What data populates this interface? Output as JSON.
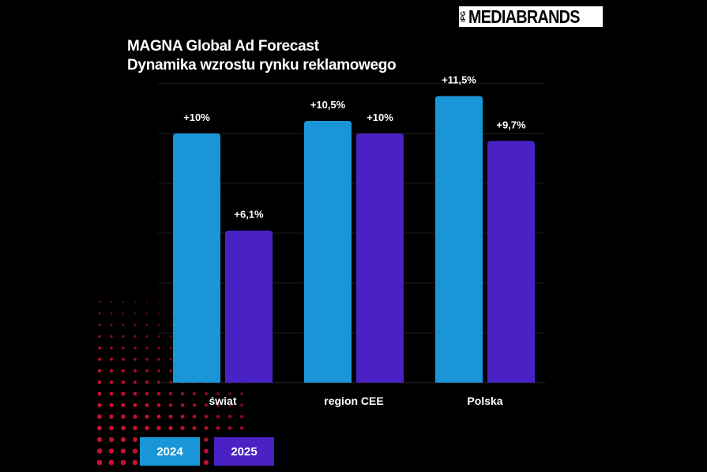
{
  "brand": {
    "logo_prefix": "IPG",
    "logo_text": "MEDIABRANDS"
  },
  "header": {
    "title_line1": "MAGNA Global Ad Forecast",
    "title_line2": "Dynamika wzrostu rynku reklamowego"
  },
  "colors": {
    "series_2024": "#1a96d8",
    "series_2025": "#4a22c4",
    "background": "#000000",
    "text": "#ffffff",
    "dots": "#c8102e"
  },
  "chart_data": {
    "type": "bar",
    "title": "MAGNA Global Ad Forecast — Dynamika wzrostu rynku reklamowego",
    "categories": [
      "świat",
      "region CEE",
      "Polska"
    ],
    "series": [
      {
        "name": "2024",
        "values": [
          10,
          10.5,
          11.5
        ],
        "labels": [
          "+10%",
          "+10,5%",
          "+11,5%"
        ]
      },
      {
        "name": "2025",
        "values": [
          6.1,
          10,
          9.7
        ],
        "labels": [
          "+6,1%",
          "+10%",
          "+9,7%"
        ]
      }
    ],
    "ylim": [
      0,
      12.5
    ],
    "xlabel": "",
    "ylabel": "",
    "grid": true,
    "legend_position": "bottom-left"
  }
}
